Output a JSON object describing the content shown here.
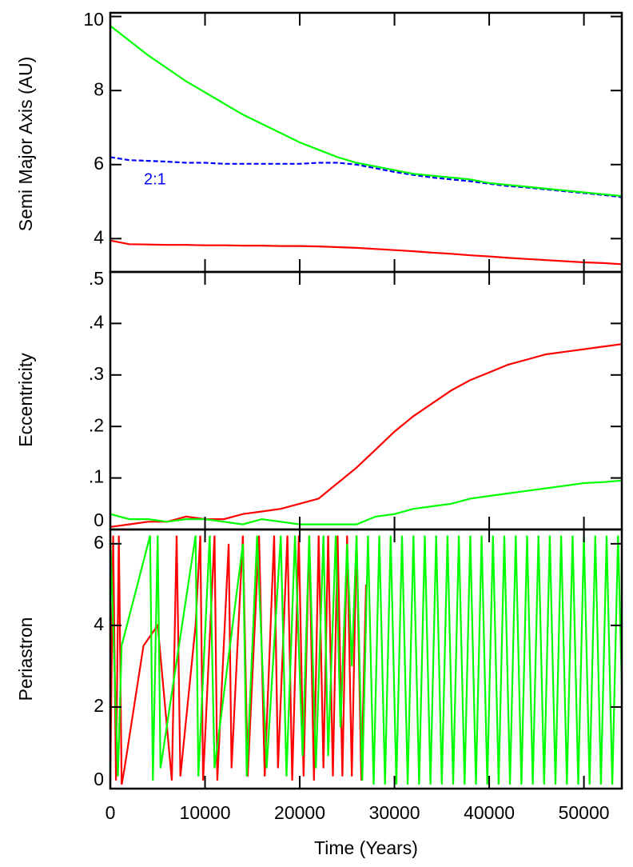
{
  "chart_data": [
    {
      "type": "line",
      "ylabel": "Semi Major Axis (AU)",
      "annotation": "2:1",
      "xlim": [
        0,
        54000
      ],
      "xticks": [
        0,
        10000,
        20000,
        30000,
        40000,
        50000
      ],
      "ylim": [
        3.1,
        10.1
      ],
      "yticks": [
        4,
        6,
        8,
        10
      ],
      "series": [
        {
          "color": "#ff0000",
          "x": [
            0,
            2000,
            4000,
            6000,
            8000,
            10000,
            12000,
            14000,
            16000,
            18000,
            20000,
            22000,
            24000,
            26000,
            28000,
            30000,
            32000,
            34000,
            36000,
            38000,
            40000,
            42000,
            44000,
            46000,
            48000,
            50000,
            52000,
            54000
          ],
          "values": [
            3.95,
            3.85,
            3.84,
            3.83,
            3.83,
            3.82,
            3.82,
            3.81,
            3.81,
            3.8,
            3.8,
            3.79,
            3.77,
            3.75,
            3.72,
            3.69,
            3.66,
            3.62,
            3.59,
            3.55,
            3.52,
            3.48,
            3.45,
            3.42,
            3.39,
            3.36,
            3.34,
            3.31
          ]
        },
        {
          "color": "#0000ff",
          "dashed": true,
          "x": [
            0,
            2000,
            4000,
            6000,
            8000,
            10000,
            12000,
            14000,
            16000,
            18000,
            20000,
            22000,
            24000,
            26000,
            28000,
            30000,
            32000,
            34000,
            36000,
            38000,
            40000,
            42000,
            44000,
            46000,
            48000,
            50000,
            52000,
            54000
          ],
          "values": [
            6.2,
            6.12,
            6.1,
            6.08,
            6.05,
            6.05,
            6.02,
            6.02,
            6.02,
            6.02,
            6.02,
            6.05,
            6.05,
            6.0,
            5.9,
            5.8,
            5.72,
            5.65,
            5.6,
            5.55,
            5.48,
            5.42,
            5.38,
            5.33,
            5.28,
            5.23,
            5.18,
            5.12
          ]
        },
        {
          "color": "#00ff00",
          "x": [
            0,
            2000,
            4000,
            6000,
            8000,
            10000,
            12000,
            14000,
            16000,
            18000,
            20000,
            22000,
            24000,
            26000,
            28000,
            30000,
            32000,
            34000,
            36000,
            38000,
            40000,
            42000,
            44000,
            46000,
            48000,
            50000,
            52000,
            54000
          ],
          "values": [
            9.75,
            9.35,
            8.95,
            8.6,
            8.25,
            7.95,
            7.65,
            7.35,
            7.1,
            6.85,
            6.6,
            6.4,
            6.2,
            6.05,
            5.95,
            5.85,
            5.75,
            5.7,
            5.65,
            5.6,
            5.5,
            5.45,
            5.4,
            5.35,
            5.3,
            5.25,
            5.2,
            5.15
          ]
        }
      ]
    },
    {
      "type": "line",
      "ylabel": "Eccentricity",
      "xlim": [
        0,
        54000
      ],
      "xticks": [
        0,
        10000,
        20000,
        30000,
        40000,
        50000
      ],
      "ylim": [
        0,
        0.5
      ],
      "yticks": [
        0,
        {
          "value": 0.1,
          "label": ".1"
        },
        {
          "value": 0.2,
          "label": ".2"
        },
        {
          "value": 0.3,
          "label": ".3"
        },
        {
          "value": 0.4,
          "label": ".4"
        },
        {
          "value": 0.5,
          "label": ".5"
        }
      ],
      "series": [
        {
          "color": "#ff0000",
          "x": [
            0,
            2000,
            4000,
            6000,
            8000,
            10000,
            12000,
            14000,
            16000,
            18000,
            20000,
            22000,
            24000,
            26000,
            28000,
            30000,
            32000,
            34000,
            36000,
            38000,
            40000,
            42000,
            44000,
            46000,
            48000,
            50000,
            52000,
            54000
          ],
          "values": [
            0.005,
            0.01,
            0.015,
            0.015,
            0.025,
            0.02,
            0.02,
            0.03,
            0.035,
            0.04,
            0.05,
            0.06,
            0.09,
            0.12,
            0.155,
            0.19,
            0.22,
            0.245,
            0.27,
            0.29,
            0.305,
            0.32,
            0.33,
            0.34,
            0.345,
            0.35,
            0.355,
            0.36
          ]
        },
        {
          "color": "#00ff00",
          "x": [
            0,
            2000,
            4000,
            6000,
            8000,
            10000,
            12000,
            14000,
            16000,
            18000,
            20000,
            22000,
            24000,
            26000,
            28000,
            30000,
            32000,
            34000,
            36000,
            38000,
            40000,
            42000,
            44000,
            46000,
            48000,
            50000,
            52000,
            54000
          ],
          "values": [
            0.03,
            0.02,
            0.02,
            0.015,
            0.02,
            0.02,
            0.015,
            0.01,
            0.02,
            0.015,
            0.01,
            0.01,
            0.01,
            0.01,
            0.025,
            0.03,
            0.04,
            0.045,
            0.05,
            0.06,
            0.065,
            0.07,
            0.075,
            0.08,
            0.085,
            0.09,
            0.092,
            0.095
          ]
        }
      ]
    },
    {
      "type": "line",
      "ylabel": "Periastron",
      "xlabel": "Time (Years)",
      "xlim": [
        0,
        54000
      ],
      "xticks": [
        0,
        10000,
        20000,
        30000,
        40000,
        50000
      ],
      "ylim": [
        0,
        6.35
      ],
      "yticks": [
        0,
        2,
        4,
        6
      ],
      "series": [
        {
          "color": "#ff0000",
          "x": [
            0,
            300,
            600,
            900,
            1200,
            1500,
            3500,
            5000,
            6500,
            7000,
            7400,
            9000,
            9500,
            9800,
            11000,
            11300,
            12500,
            12800,
            14000,
            14500,
            15700,
            16300,
            17300,
            17700,
            18700,
            19200,
            19900,
            20400,
            21000,
            21500,
            22000,
            22500,
            23000,
            23500,
            24000,
            24500,
            25000,
            25500,
            26000,
            26500,
            27000
          ],
          "values": [
            0.2,
            6.2,
            0.2,
            6.2,
            0.1,
            0.5,
            3.5,
            4,
            0.2,
            6.2,
            0.3,
            4,
            6.2,
            0.2,
            6.2,
            0.2,
            6,
            0.5,
            6.2,
            0.3,
            6.2,
            0.3,
            6.2,
            0.5,
            6.2,
            0.2,
            6.2,
            0.3,
            6.2,
            0.2,
            6.2,
            0.5,
            6.2,
            0.3,
            6.2,
            0.3,
            6.2,
            0.3,
            6.2,
            0.2,
            5
          ]
        },
        {
          "color": "#00ff00",
          "x": [
            0,
            800,
            1200,
            4200,
            4500,
            5000,
            5300,
            9000,
            9300,
            10500,
            11000,
            14000,
            14400,
            15500,
            16500,
            18000,
            18600,
            19500,
            20300,
            21000,
            21700,
            22500,
            23000,
            23800,
            24300,
            25000,
            25500,
            26000,
            26600,
            27200,
            27800,
            28400,
            29000,
            29600,
            30200,
            30800,
            31400,
            32000,
            32600,
            33200,
            33800,
            34400,
            35000,
            35600,
            36200,
            36800,
            37400,
            38000,
            38600,
            39200,
            39800,
            40400,
            41000,
            41600,
            42200,
            42800,
            43400,
            44000,
            44600,
            45200,
            45800,
            46400,
            47000,
            47600,
            48200,
            48800,
            49400,
            50000,
            50600,
            51200,
            51800,
            52400,
            53000,
            53600,
            54000
          ],
          "values": [
            6.2,
            0.3,
            3.5,
            6.2,
            0.2,
            6.2,
            0.5,
            6.2,
            0.3,
            6.2,
            0.5,
            6,
            0.3,
            6.2,
            0.5,
            6.2,
            0.3,
            6.2,
            0.8,
            6.2,
            0.5,
            6.2,
            0.8,
            6.2,
            1.5,
            6,
            3,
            6.2,
            0.2,
            6.2,
            0.1,
            6.2,
            0.1,
            6.2,
            0.1,
            6.2,
            0.1,
            6.2,
            0.1,
            6.2,
            0.1,
            6.2,
            0.1,
            6.2,
            0.1,
            6.2,
            0.1,
            6.2,
            0.1,
            6.2,
            0.1,
            6.2,
            0.1,
            6.2,
            0.1,
            6.2,
            0.1,
            6.2,
            0.1,
            6.2,
            0.1,
            6.2,
            0.1,
            6.2,
            0.1,
            6.2,
            0.1,
            6.2,
            0.1,
            6.2,
            0.1,
            6.2,
            0.1,
            6.2,
            2.5
          ]
        }
      ]
    }
  ]
}
